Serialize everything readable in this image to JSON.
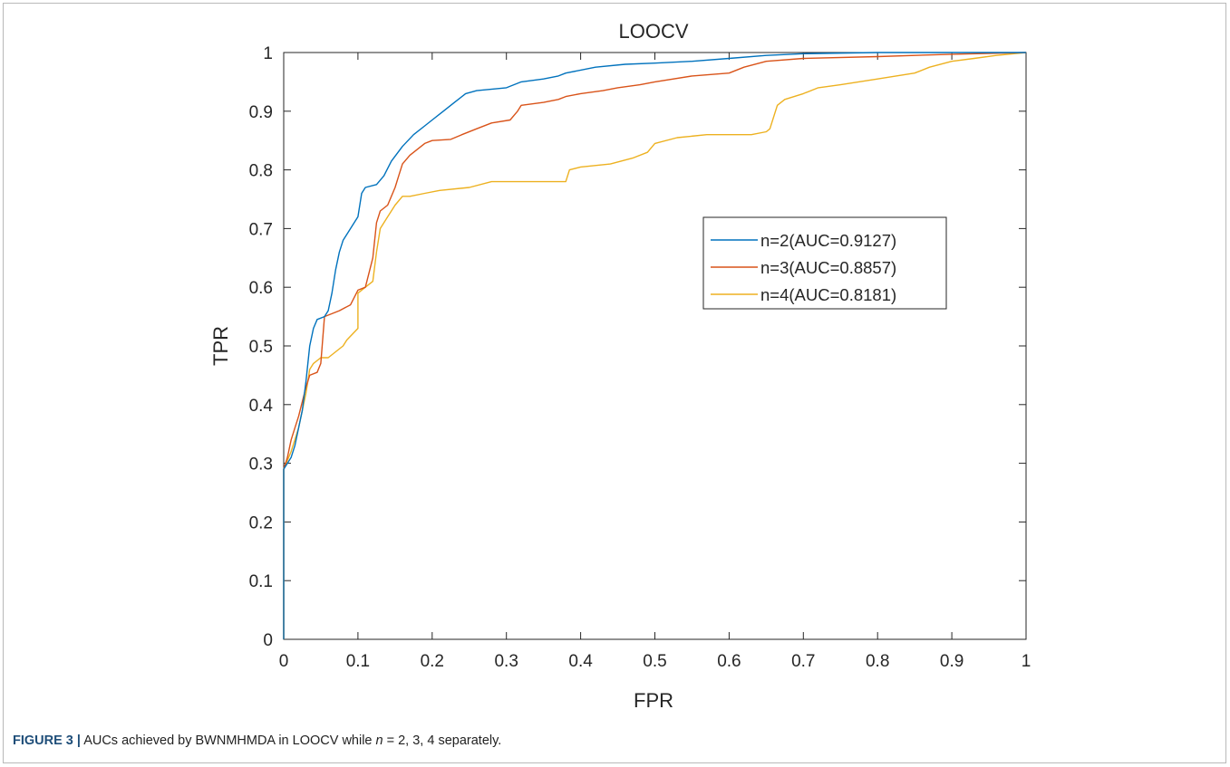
{
  "chart_data": {
    "type": "line",
    "title": "LOOCV",
    "xlabel": "FPR",
    "ylabel": "TPR",
    "xlim": [
      0,
      1
    ],
    "ylim": [
      0,
      1
    ],
    "xticks": [
      0,
      0.1,
      0.2,
      0.3,
      0.4,
      0.5,
      0.6,
      0.7,
      0.8,
      0.9,
      1
    ],
    "yticks": [
      0,
      0.1,
      0.2,
      0.3,
      0.4,
      0.5,
      0.6,
      0.7,
      0.8,
      0.9,
      1
    ],
    "xtick_labels": [
      "0",
      "0.1",
      "0.2",
      "0.3",
      "0.4",
      "0.5",
      "0.6",
      "0.7",
      "0.8",
      "0.9",
      "1"
    ],
    "ytick_labels": [
      "0",
      "0.1",
      "0.2",
      "0.3",
      "0.4",
      "0.5",
      "0.6",
      "0.7",
      "0.8",
      "0.9",
      "1"
    ],
    "grid": false,
    "legend_position": "right",
    "series": [
      {
        "name": "n=2(AUC=0.9127)",
        "color": "#0072BD",
        "points": [
          [
            0,
            0
          ],
          [
            0,
            0.29
          ],
          [
            0.005,
            0.3
          ],
          [
            0.01,
            0.31
          ],
          [
            0.015,
            0.33
          ],
          [
            0.02,
            0.36
          ],
          [
            0.025,
            0.39
          ],
          [
            0.03,
            0.44
          ],
          [
            0.035,
            0.5
          ],
          [
            0.04,
            0.53
          ],
          [
            0.045,
            0.545
          ],
          [
            0.055,
            0.55
          ],
          [
            0.06,
            0.56
          ],
          [
            0.065,
            0.59
          ],
          [
            0.07,
            0.63
          ],
          [
            0.075,
            0.66
          ],
          [
            0.08,
            0.68
          ],
          [
            0.09,
            0.7
          ],
          [
            0.1,
            0.72
          ],
          [
            0.105,
            0.76
          ],
          [
            0.11,
            0.77
          ],
          [
            0.125,
            0.775
          ],
          [
            0.135,
            0.79
          ],
          [
            0.145,
            0.815
          ],
          [
            0.16,
            0.84
          ],
          [
            0.175,
            0.86
          ],
          [
            0.19,
            0.875
          ],
          [
            0.2,
            0.885
          ],
          [
            0.215,
            0.9
          ],
          [
            0.23,
            0.915
          ],
          [
            0.245,
            0.93
          ],
          [
            0.26,
            0.935
          ],
          [
            0.3,
            0.94
          ],
          [
            0.32,
            0.95
          ],
          [
            0.35,
            0.955
          ],
          [
            0.37,
            0.96
          ],
          [
            0.38,
            0.965
          ],
          [
            0.42,
            0.975
          ],
          [
            0.46,
            0.98
          ],
          [
            0.5,
            0.982
          ],
          [
            0.55,
            0.985
          ],
          [
            0.6,
            0.99
          ],
          [
            0.65,
            0.995
          ],
          [
            0.7,
            0.998
          ],
          [
            0.8,
            1
          ],
          [
            1,
            1
          ]
        ]
      },
      {
        "name": "n=3(AUC=0.8857)",
        "color": "#D95319",
        "points": [
          [
            0,
            0
          ],
          [
            0,
            0.29
          ],
          [
            0.005,
            0.31
          ],
          [
            0.01,
            0.34
          ],
          [
            0.015,
            0.36
          ],
          [
            0.02,
            0.38
          ],
          [
            0.03,
            0.43
          ],
          [
            0.035,
            0.45
          ],
          [
            0.045,
            0.455
          ],
          [
            0.05,
            0.47
          ],
          [
            0.055,
            0.55
          ],
          [
            0.065,
            0.555
          ],
          [
            0.075,
            0.56
          ],
          [
            0.09,
            0.57
          ],
          [
            0.1,
            0.595
          ],
          [
            0.11,
            0.6
          ],
          [
            0.12,
            0.65
          ],
          [
            0.125,
            0.71
          ],
          [
            0.13,
            0.73
          ],
          [
            0.14,
            0.74
          ],
          [
            0.15,
            0.77
          ],
          [
            0.155,
            0.79
          ],
          [
            0.16,
            0.81
          ],
          [
            0.17,
            0.825
          ],
          [
            0.18,
            0.835
          ],
          [
            0.19,
            0.845
          ],
          [
            0.2,
            0.85
          ],
          [
            0.225,
            0.852
          ],
          [
            0.24,
            0.86
          ],
          [
            0.26,
            0.87
          ],
          [
            0.28,
            0.88
          ],
          [
            0.305,
            0.885
          ],
          [
            0.315,
            0.9
          ],
          [
            0.32,
            0.91
          ],
          [
            0.35,
            0.915
          ],
          [
            0.37,
            0.92
          ],
          [
            0.38,
            0.925
          ],
          [
            0.4,
            0.93
          ],
          [
            0.43,
            0.935
          ],
          [
            0.45,
            0.94
          ],
          [
            0.48,
            0.945
          ],
          [
            0.5,
            0.95
          ],
          [
            0.55,
            0.96
          ],
          [
            0.6,
            0.965
          ],
          [
            0.62,
            0.975
          ],
          [
            0.65,
            0.985
          ],
          [
            0.7,
            0.99
          ],
          [
            0.8,
            0.993
          ],
          [
            0.9,
            0.997
          ],
          [
            1,
            1
          ]
        ]
      },
      {
        "name": "n=4(AUC=0.8181)",
        "color": "#EDB120",
        "points": [
          [
            0,
            0
          ],
          [
            0,
            0.29
          ],
          [
            0.01,
            0.32
          ],
          [
            0.02,
            0.36
          ],
          [
            0.03,
            0.42
          ],
          [
            0.035,
            0.46
          ],
          [
            0.04,
            0.47
          ],
          [
            0.05,
            0.48
          ],
          [
            0.06,
            0.48
          ],
          [
            0.07,
            0.49
          ],
          [
            0.08,
            0.5
          ],
          [
            0.085,
            0.51
          ],
          [
            0.1,
            0.53
          ],
          [
            0.1,
            0.59
          ],
          [
            0.11,
            0.6
          ],
          [
            0.12,
            0.61
          ],
          [
            0.125,
            0.66
          ],
          [
            0.13,
            0.7
          ],
          [
            0.14,
            0.72
          ],
          [
            0.15,
            0.74
          ],
          [
            0.16,
            0.755
          ],
          [
            0.17,
            0.755
          ],
          [
            0.19,
            0.76
          ],
          [
            0.21,
            0.765
          ],
          [
            0.25,
            0.77
          ],
          [
            0.28,
            0.78
          ],
          [
            0.32,
            0.78
          ],
          [
            0.38,
            0.78
          ],
          [
            0.385,
            0.8
          ],
          [
            0.4,
            0.805
          ],
          [
            0.44,
            0.81
          ],
          [
            0.47,
            0.82
          ],
          [
            0.49,
            0.83
          ],
          [
            0.5,
            0.845
          ],
          [
            0.53,
            0.855
          ],
          [
            0.57,
            0.86
          ],
          [
            0.6,
            0.86
          ],
          [
            0.63,
            0.86
          ],
          [
            0.65,
            0.865
          ],
          [
            0.655,
            0.87
          ],
          [
            0.665,
            0.91
          ],
          [
            0.675,
            0.92
          ],
          [
            0.7,
            0.93
          ],
          [
            0.72,
            0.94
          ],
          [
            0.75,
            0.945
          ],
          [
            0.8,
            0.955
          ],
          [
            0.85,
            0.965
          ],
          [
            0.87,
            0.975
          ],
          [
            0.9,
            0.985
          ],
          [
            0.93,
            0.99
          ],
          [
            0.96,
            0.995
          ],
          [
            1,
            1
          ]
        ]
      }
    ]
  },
  "caption": {
    "label": "FIGURE 3 |",
    "text_before": " AUCs achieved by BWNMHMDA in LOOCV while ",
    "variable": "n",
    "text_after": " = 2, 3, 4 separately."
  }
}
